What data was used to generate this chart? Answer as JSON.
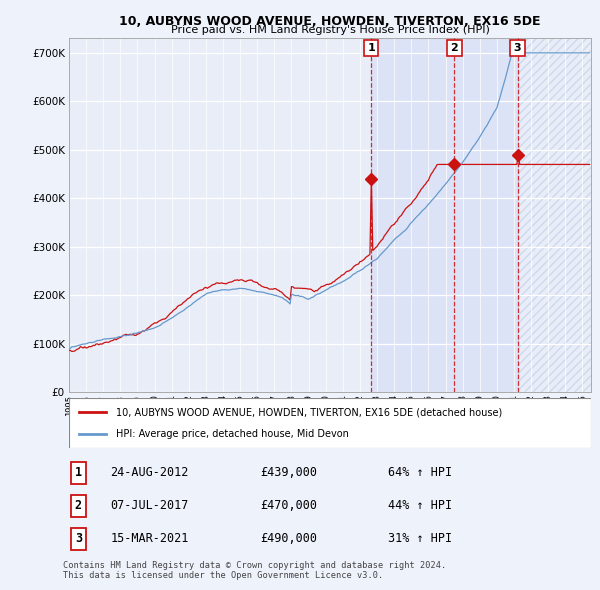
{
  "title_line1": "10, AUBYNS WOOD AVENUE, HOWDEN, TIVERTON, EX16 5DE",
  "title_line2": "Price paid vs. HM Land Registry's House Price Index (HPI)",
  "y_ticks": [
    0,
    100000,
    200000,
    300000,
    400000,
    500000,
    600000,
    700000
  ],
  "ylim": [
    0,
    730000
  ],
  "xlim_start": 1995,
  "xlim_end": 2025.5,
  "bg_color": "#eef2fb",
  "plot_bg": "#e8edf8",
  "red_color": "#cc1111",
  "blue_color": "#6699cc",
  "vline_color": "#cc1111",
  "hatch_color": "#c8d0e0",
  "transactions": [
    {
      "date": 2012.65,
      "price": 439000,
      "label": "1"
    },
    {
      "date": 2017.52,
      "price": 470000,
      "label": "2"
    },
    {
      "date": 2021.21,
      "price": 490000,
      "label": "3"
    }
  ],
  "transaction_table": [
    {
      "num": "1",
      "date": "24-AUG-2012",
      "price": "£439,000",
      "change": "64% ↑ HPI"
    },
    {
      "num": "2",
      "date": "07-JUL-2017",
      "price": "£470,000",
      "change": "44% ↑ HPI"
    },
    {
      "num": "3",
      "date": "15-MAR-2021",
      "price": "£490,000",
      "change": "31% ↑ HPI"
    }
  ],
  "legend_red": "10, AUBYNS WOOD AVENUE, HOWDEN, TIVERTON, EX16 5DE (detached house)",
  "legend_blue": "HPI: Average price, detached house, Mid Devon",
  "footnote": "Contains HM Land Registry data © Crown copyright and database right 2024.\nThis data is licensed under the Open Government Licence v3.0.",
  "seed": 137
}
